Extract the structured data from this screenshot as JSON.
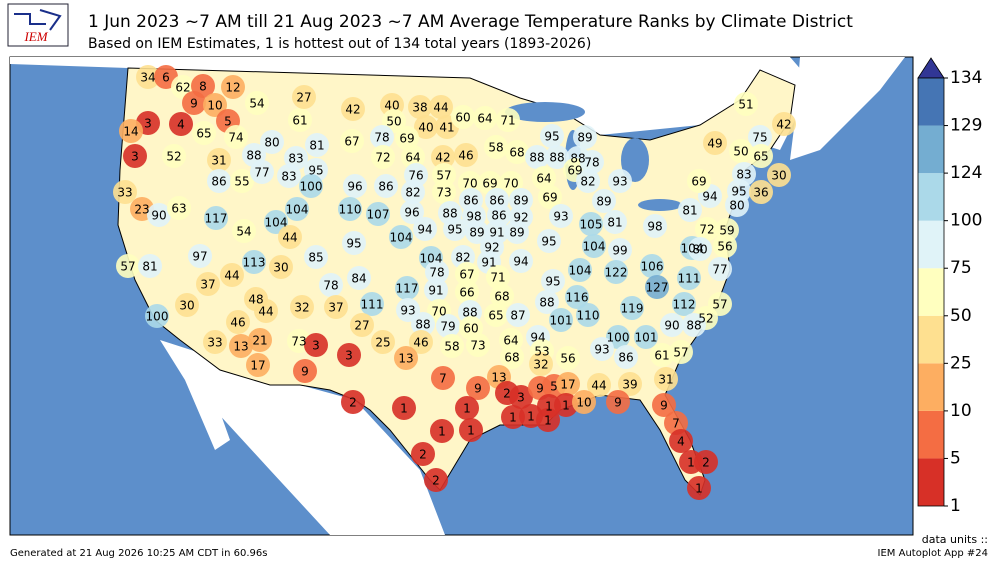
{
  "header": {
    "logo": "IEM",
    "title": "1 Jun 2023 ~7 AM till 21 Aug 2023 ~7 AM Average Temperature Ranks by Climate District",
    "subtitle": "Based on IEM Estimates, 1 is hottest out of 134 total years (1893-2026)"
  },
  "map": {
    "districts": [
      34,
      6,
      62,
      8,
      12,
      9,
      10,
      3,
      4,
      5,
      14,
      65,
      74,
      3,
      52,
      88,
      31,
      80,
      81,
      67,
      83,
      95,
      86,
      55,
      77,
      83,
      100,
      96,
      54,
      61,
      27,
      42,
      40,
      38,
      44,
      50,
      40,
      41,
      60,
      64,
      71,
      78,
      69,
      72,
      64,
      42,
      46,
      58,
      68,
      88,
      88,
      88,
      95,
      89,
      69,
      86,
      76,
      57,
      82,
      73,
      70,
      69,
      70,
      64,
      86,
      86,
      89,
      69,
      78,
      82,
      93,
      89,
      33,
      23,
      90,
      63,
      104,
      110,
      107,
      96,
      88,
      98,
      86,
      92,
      93,
      104,
      117,
      44,
      54,
      104,
      94,
      95,
      89,
      91,
      89,
      95,
      85,
      57,
      81,
      97,
      113,
      30,
      104,
      82,
      91,
      92,
      94,
      78,
      67,
      71,
      95,
      105,
      81,
      104,
      99,
      98,
      104,
      81,
      94,
      72,
      80,
      59,
      56,
      106,
      111,
      77,
      127,
      112,
      57,
      52,
      122,
      104,
      116,
      95,
      84,
      78,
      37,
      44,
      48,
      44,
      100,
      30,
      46,
      13,
      21,
      33,
      17,
      111,
      117,
      91,
      66,
      68,
      93,
      70,
      88,
      88,
      110,
      101,
      119,
      90,
      88,
      65,
      87,
      32,
      37,
      27,
      88,
      79,
      60,
      73,
      3,
      3,
      25,
      46,
      58,
      73,
      64,
      94,
      100,
      101,
      53,
      32,
      68,
      56,
      93,
      86,
      61,
      57,
      13,
      9,
      7,
      9,
      13,
      2,
      3,
      9,
      5,
      17,
      44,
      39,
      31,
      2,
      1,
      1,
      1,
      1,
      1,
      1,
      1,
      10,
      9,
      9,
      7,
      4,
      1,
      2,
      1,
      1,
      1,
      2,
      2,
      51,
      42,
      75,
      49,
      50,
      65,
      69,
      83,
      95,
      36,
      30,
      80
    ]
  },
  "colorbar": {
    "units": "data units ::",
    "ticks": [
      1,
      5,
      10,
      25,
      50,
      75,
      100,
      124,
      129,
      134
    ],
    "colors": [
      "#d73027",
      "#f46d43",
      "#fdae61",
      "#fee090",
      "#ffffbf",
      "#e0f3f8",
      "#abd9e9",
      "#74add1",
      "#4575b4"
    ],
    "extend_color": "#313695"
  },
  "footer": {
    "generated": "Generated at 21 Aug 2026 10:25 AM CDT in 60.96s",
    "app": "IEM Autoplot App #24"
  }
}
